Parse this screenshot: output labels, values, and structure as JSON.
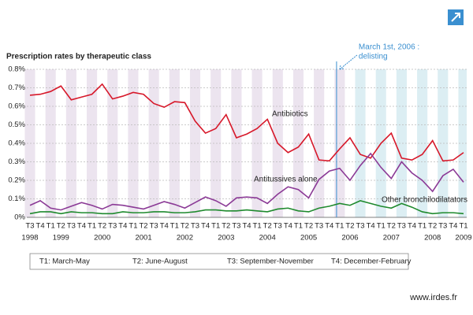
{
  "chart_data": {
    "type": "line",
    "title": "Prescription rates by therapeutic class",
    "categories": [
      "T3",
      "T4",
      "T1",
      "T2",
      "T3",
      "T4",
      "T1",
      "T2",
      "T3",
      "T4",
      "T1",
      "T2",
      "T3",
      "T4",
      "T1",
      "T2",
      "T3",
      "T4",
      "T1",
      "T2",
      "T3",
      "T4",
      "T1",
      "T2",
      "T3",
      "T4",
      "T1",
      "T2",
      "T3",
      "T4",
      "T1",
      "T2",
      "T3",
      "T4",
      "T1",
      "T2",
      "T3",
      "T4",
      "T1",
      "T2",
      "T3",
      "T4",
      "T1"
    ],
    "years": [
      "1998",
      null,
      null,
      "1999",
      null,
      null,
      null,
      "2000",
      null,
      null,
      null,
      "2001",
      null,
      null,
      null,
      "2002",
      null,
      null,
      null,
      "2003",
      null,
      null,
      null,
      "2004",
      null,
      null,
      null,
      "2005",
      null,
      null,
      null,
      "2006",
      null,
      null,
      null,
      "2007",
      null,
      null,
      null,
      "2008",
      null,
      null,
      "2009"
    ],
    "ylim": [
      0,
      0.8
    ],
    "yticks": [
      {
        "value": 0,
        "label": "0%"
      },
      {
        "value": 0.1,
        "label": "0.1%"
      },
      {
        "value": 0.2,
        "label": "0.2%"
      },
      {
        "value": 0.3,
        "label": "0.3%"
      },
      {
        "value": 0.4,
        "label": "0.4%"
      },
      {
        "value": 0.5,
        "label": "0.5%"
      },
      {
        "value": 0.6,
        "label": "0.6%"
      },
      {
        "value": 0.7,
        "label": "0.7%"
      },
      {
        "value": 0.8,
        "label": "0.8%"
      }
    ],
    "grid": true,
    "series": [
      {
        "name": "Antibiotics",
        "color": "#d7182a",
        "values": [
          0.66,
          0.665,
          0.68,
          0.71,
          0.635,
          0.65,
          0.665,
          0.72,
          0.64,
          0.655,
          0.675,
          0.665,
          0.615,
          0.595,
          0.625,
          0.62,
          0.52,
          0.455,
          0.48,
          0.555,
          0.43,
          0.45,
          0.48,
          0.53,
          0.4,
          0.35,
          0.38,
          0.45,
          0.31,
          0.305,
          0.37,
          0.43,
          0.34,
          0.32,
          0.4,
          0.455,
          0.32,
          0.31,
          0.34,
          0.415,
          0.305,
          0.31,
          0.35
        ]
      },
      {
        "name": "Antitussives alone",
        "color": "#8b3a96",
        "values": [
          0.065,
          0.09,
          0.05,
          0.04,
          0.06,
          0.08,
          0.065,
          0.045,
          0.07,
          0.065,
          0.055,
          0.045,
          0.065,
          0.085,
          0.07,
          0.05,
          0.08,
          0.11,
          0.09,
          0.06,
          0.105,
          0.11,
          0.105,
          0.075,
          0.125,
          0.165,
          0.15,
          0.105,
          0.205,
          0.25,
          0.265,
          0.2,
          0.28,
          0.345,
          0.27,
          0.21,
          0.3,
          0.24,
          0.2,
          0.14,
          0.225,
          0.26,
          0.19
        ]
      },
      {
        "name": "Other bronchilodilatators",
        "color": "#1f8a2e",
        "values": [
          0.02,
          0.03,
          0.03,
          0.02,
          0.03,
          0.025,
          0.025,
          0.02,
          0.02,
          0.03,
          0.025,
          0.025,
          0.03,
          0.03,
          0.025,
          0.025,
          0.03,
          0.04,
          0.04,
          0.035,
          0.035,
          0.04,
          0.035,
          0.03,
          0.045,
          0.05,
          0.035,
          0.03,
          0.05,
          0.06,
          0.075,
          0.065,
          0.09,
          0.075,
          0.06,
          0.05,
          0.075,
          0.055,
          0.03,
          0.02,
          0.025,
          0.025,
          0.02
        ]
      }
    ],
    "annotation": {
      "lines": [
        "March 1st, 2006 :",
        "delisting"
      ],
      "category_index": 30
    },
    "quarter_legend": [
      "T1: March-May",
      "T2: June-August",
      "T3: September-November",
      "T4: December-February"
    ],
    "source": "www.irdes.fr"
  }
}
